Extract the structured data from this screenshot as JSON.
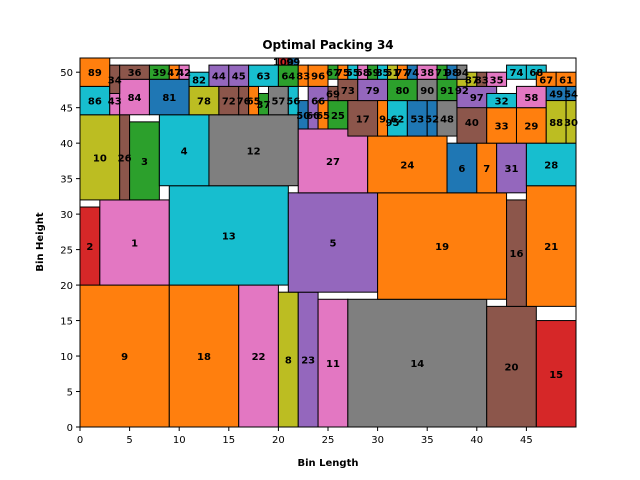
{
  "chart_data": {
    "type": "packing",
    "title": "Optimal Packing 34",
    "xlabel": "Bin Length",
    "ylabel": "Bin Height",
    "xlim": [
      0,
      50
    ],
    "ylim": [
      0,
      52
    ],
    "xticks": [
      0,
      5,
      10,
      15,
      20,
      25,
      30,
      35,
      40,
      45
    ],
    "yticks": [
      0,
      5,
      10,
      15,
      20,
      25,
      30,
      35,
      40,
      45,
      50
    ],
    "colors": [
      "#1f77b4",
      "#ff7f0e",
      "#2ca02c",
      "#d62728",
      "#9467bd",
      "#8c564b",
      "#e377c2",
      "#7f7f7f",
      "#bcbd22",
      "#17becf"
    ],
    "rects": [
      {
        "id": "9",
        "x": 0,
        "y": 0,
        "w": 9,
        "h": 20,
        "c": 1
      },
      {
        "id": "18",
        "x": 9,
        "y": 0,
        "w": 7,
        "h": 20,
        "c": 1
      },
      {
        "id": "22",
        "x": 16,
        "y": 0,
        "w": 4,
        "h": 20,
        "c": 6
      },
      {
        "id": "8",
        "x": 20,
        "y": 0,
        "w": 2,
        "h": 19,
        "c": 8
      },
      {
        "id": "23",
        "x": 22,
        "y": 0,
        "w": 2,
        "h": 19,
        "c": 4
      },
      {
        "id": "11",
        "x": 24,
        "y": 0,
        "w": 3,
        "h": 18,
        "c": 6
      },
      {
        "id": "14",
        "x": 27,
        "y": 0,
        "w": 14,
        "h": 18,
        "c": 7
      },
      {
        "id": "20",
        "x": 41,
        "y": 0,
        "w": 5,
        "h": 17,
        "c": 5
      },
      {
        "id": "15",
        "x": 46,
        "y": 0,
        "w": 4,
        "h": 15,
        "c": 3
      },
      {
        "id": "2",
        "x": 0,
        "y": 20,
        "w": 2,
        "h": 11,
        "c": 3
      },
      {
        "id": "1",
        "x": 2,
        "y": 20,
        "w": 7,
        "h": 12,
        "c": 6
      },
      {
        "id": "13",
        "x": 9,
        "y": 20,
        "w": 12,
        "h": 14,
        "c": 9
      },
      {
        "id": "5",
        "x": 21,
        "y": 19,
        "w": 9,
        "h": 14,
        "c": 4
      },
      {
        "id": "19",
        "x": 30,
        "y": 18,
        "w": 13,
        "h": 15,
        "c": 1
      },
      {
        "id": "16",
        "x": 43,
        "y": 17,
        "w": 2,
        "h": 15,
        "c": 5
      },
      {
        "id": "21",
        "x": 45,
        "y": 17,
        "w": 5,
        "h": 17,
        "c": 1
      },
      {
        "id": "10",
        "x": 0,
        "y": 32,
        "w": 4,
        "h": 12,
        "c": 8
      },
      {
        "id": "26",
        "x": 4,
        "y": 32,
        "w": 1,
        "h": 12,
        "c": 5
      },
      {
        "id": "3",
        "x": 5,
        "y": 32,
        "w": 3,
        "h": 11,
        "c": 2
      },
      {
        "id": "4",
        "x": 8,
        "y": 34,
        "w": 5,
        "h": 10,
        "c": 9
      },
      {
        "id": "12",
        "x": 13,
        "y": 34,
        "w": 9,
        "h": 10,
        "c": 7
      },
      {
        "id": "27",
        "x": 22,
        "y": 33,
        "w": 7,
        "h": 9,
        "c": 6
      },
      {
        "id": "24",
        "x": 29,
        "y": 33,
        "w": 8,
        "h": 8,
        "c": 1
      },
      {
        "id": "6",
        "x": 37,
        "y": 33,
        "w": 3,
        "h": 7,
        "c": 0
      },
      {
        "id": "7",
        "x": 40,
        "y": 33,
        "w": 2,
        "h": 7,
        "c": 1
      },
      {
        "id": "31",
        "x": 42,
        "y": 33,
        "w": 3,
        "h": 7,
        "c": 4
      },
      {
        "id": "28",
        "x": 45,
        "y": 34,
        "w": 5,
        "h": 6,
        "c": 9
      },
      {
        "id": "86",
        "x": 0,
        "y": 44,
        "w": 3,
        "h": 4,
        "c": 9
      },
      {
        "id": "43",
        "x": 3,
        "y": 44,
        "w": 1,
        "h": 4,
        "c": 6
      },
      {
        "id": "84",
        "x": 4,
        "y": 44,
        "w": 3,
        "h": 5,
        "c": 6
      },
      {
        "id": "81",
        "x": 7,
        "y": 44,
        "w": 4,
        "h": 5,
        "c": 0
      },
      {
        "id": "78",
        "x": 11,
        "y": 44,
        "w": 3,
        "h": 4,
        "c": 8
      },
      {
        "id": "72",
        "x": 14,
        "y": 44,
        "w": 2,
        "h": 4,
        "c": 5
      },
      {
        "id": "76",
        "x": 16,
        "y": 44,
        "w": 1,
        "h": 4,
        "c": 5
      },
      {
        "id": "65",
        "x": 17,
        "y": 44,
        "w": 1,
        "h": 4,
        "c": 1
      },
      {
        "id": "37",
        "x": 18,
        "y": 44,
        "w": 1,
        "h": 3,
        "c": 2
      },
      {
        "id": "57",
        "x": 19,
        "y": 44,
        "w": 2,
        "h": 4,
        "c": 7
      },
      {
        "id": "56",
        "x": 21,
        "y": 44,
        "w": 1,
        "h": 4,
        "c": 9
      },
      {
        "id": "50",
        "x": 22,
        "y": 42,
        "w": 1,
        "h": 4,
        "c": 0
      },
      {
        "id": "60",
        "x": 23,
        "y": 42,
        "w": 1,
        "h": 4,
        "c": 4
      },
      {
        "id": "66",
        "x": 23,
        "y": 44,
        "w": 2,
        "h": 4,
        "c": 4
      },
      {
        "id": "65",
        "x": 24,
        "y": 42,
        "w": 1,
        "h": 4,
        "c": 1
      },
      {
        "id": "25",
        "x": 25,
        "y": 42,
        "w": 2,
        "h": 4,
        "c": 2
      },
      {
        "id": "69",
        "x": 25,
        "y": 46,
        "w": 1,
        "h": 2,
        "c": 5
      },
      {
        "id": "73",
        "x": 26,
        "y": 46,
        "w": 2,
        "h": 3,
        "c": 5
      },
      {
        "id": "17",
        "x": 27,
        "y": 41,
        "w": 3,
        "h": 5,
        "c": 5
      },
      {
        "id": "79",
        "x": 28,
        "y": 46,
        "w": 3,
        "h": 3,
        "c": 4
      },
      {
        "id": "9",
        "x": 30,
        "y": 41,
        "w": 1,
        "h": 5,
        "c": 1
      },
      {
        "id": "95",
        "x": 31,
        "y": 41,
        "w": 1,
        "h": 4,
        "c": 3
      },
      {
        "id": "62",
        "x": 31,
        "y": 41,
        "w": 2,
        "h": 5,
        "c": 9
      },
      {
        "id": "53",
        "x": 33,
        "y": 41,
        "w": 2,
        "h": 5,
        "c": 0
      },
      {
        "id": "52",
        "x": 35,
        "y": 41,
        "w": 1,
        "h": 5,
        "c": 0
      },
      {
        "id": "48",
        "x": 36,
        "y": 41,
        "w": 2,
        "h": 5,
        "c": 7
      },
      {
        "id": "80",
        "x": 31,
        "y": 46,
        "w": 3,
        "h": 3,
        "c": 2
      },
      {
        "id": "90",
        "x": 34,
        "y": 46,
        "w": 2,
        "h": 3,
        "c": 7
      },
      {
        "id": "91",
        "x": 36,
        "y": 46,
        "w": 2,
        "h": 3,
        "c": 2
      },
      {
        "id": "92",
        "x": 38,
        "y": 46,
        "w": 1,
        "h": 3,
        "c": 8
      },
      {
        "id": "40",
        "x": 38,
        "y": 40,
        "w": 3,
        "h": 6,
        "c": 5
      },
      {
        "id": "97",
        "x": 38,
        "y": 45,
        "w": 4,
        "h": 3,
        "c": 4
      },
      {
        "id": "33",
        "x": 41,
        "y": 40,
        "w": 3,
        "h": 5,
        "c": 1
      },
      {
        "id": "32",
        "x": 41,
        "y": 45,
        "w": 3,
        "h": 2,
        "c": 9
      },
      {
        "id": "29",
        "x": 44,
        "y": 40,
        "w": 3,
        "h": 5,
        "c": 1
      },
      {
        "id": "58",
        "x": 44,
        "y": 45,
        "w": 3,
        "h": 3,
        "c": 6
      },
      {
        "id": "49",
        "x": 47,
        "y": 46,
        "w": 2,
        "h": 2,
        "c": 0
      },
      {
        "id": "54",
        "x": 49,
        "y": 46,
        "w": 1,
        "h": 2,
        "c": 0
      },
      {
        "id": "88",
        "x": 47,
        "y": 40,
        "w": 2,
        "h": 6,
        "c": 8
      },
      {
        "id": "30",
        "x": 49,
        "y": 40,
        "w": 1,
        "h": 6,
        "c": 8
      },
      {
        "id": "89",
        "x": 0,
        "y": 48,
        "w": 3,
        "h": 4,
        "c": 1
      },
      {
        "id": "34",
        "x": 3,
        "y": 47,
        "w": 1,
        "h": 4,
        "c": 5
      },
      {
        "id": "36",
        "x": 4,
        "y": 49,
        "w": 3,
        "h": 2,
        "c": 5
      },
      {
        "id": "39",
        "x": 7,
        "y": 49,
        "w": 2,
        "h": 2,
        "c": 2
      },
      {
        "id": "47",
        "x": 9,
        "y": 49,
        "w": 1,
        "h": 2,
        "c": 1
      },
      {
        "id": "42",
        "x": 10,
        "y": 49,
        "w": 1,
        "h": 2,
        "c": 6
      },
      {
        "id": "82",
        "x": 11,
        "y": 48,
        "w": 2,
        "h": 2,
        "c": 9
      },
      {
        "id": "44",
        "x": 13,
        "y": 48,
        "w": 2,
        "h": 3,
        "c": 4
      },
      {
        "id": "45",
        "x": 15,
        "y": 48,
        "w": 2,
        "h": 3,
        "c": 4
      },
      {
        "id": "63",
        "x": 17,
        "y": 48,
        "w": 3,
        "h": 3,
        "c": 9
      },
      {
        "id": "64",
        "x": 20,
        "y": 48,
        "w": 2,
        "h": 3,
        "c": 2
      },
      {
        "id": "83",
        "x": 22,
        "y": 48,
        "w": 1,
        "h": 3,
        "c": 1
      },
      {
        "id": "96",
        "x": 23,
        "y": 48,
        "w": 2,
        "h": 3,
        "c": 1
      },
      {
        "id": "100",
        "x": 20,
        "y": 51,
        "w": 1,
        "h": 1,
        "c": 3
      },
      {
        "id": "99",
        "x": 21,
        "y": 51,
        "w": 1,
        "h": 1,
        "c": 0
      },
      {
        "id": "67",
        "x": 25,
        "y": 49,
        "w": 1,
        "h": 2,
        "c": 2
      },
      {
        "id": "75",
        "x": 26,
        "y": 49,
        "w": 1,
        "h": 2,
        "c": 1
      },
      {
        "id": "55",
        "x": 27,
        "y": 49,
        "w": 1,
        "h": 2,
        "c": 9
      },
      {
        "id": "68",
        "x": 28,
        "y": 49,
        "w": 1,
        "h": 2,
        "c": 6
      },
      {
        "id": "59",
        "x": 29,
        "y": 49,
        "w": 1,
        "h": 2,
        "c": 2
      },
      {
        "id": "85",
        "x": 30,
        "y": 49,
        "w": 1,
        "h": 2,
        "c": 9
      },
      {
        "id": "51",
        "x": 31,
        "y": 49,
        "w": 1,
        "h": 2,
        "c": 8
      },
      {
        "id": "77",
        "x": 32,
        "y": 49,
        "w": 1,
        "h": 2,
        "c": 1
      },
      {
        "id": "74",
        "x": 33,
        "y": 49,
        "w": 1,
        "h": 2,
        "c": 0
      },
      {
        "id": "38",
        "x": 34,
        "y": 49,
        "w": 2,
        "h": 2,
        "c": 6
      },
      {
        "id": "71",
        "x": 36,
        "y": 49,
        "w": 1,
        "h": 2,
        "c": 2
      },
      {
        "id": "98",
        "x": 37,
        "y": 49,
        "w": 1,
        "h": 2,
        "c": 0
      },
      {
        "id": "94",
        "x": 38,
        "y": 49,
        "w": 1,
        "h": 2,
        "c": 7
      },
      {
        "id": "87",
        "x": 39,
        "y": 48,
        "w": 1,
        "h": 2,
        "c": 8
      },
      {
        "id": "83",
        "x": 40,
        "y": 48,
        "w": 1,
        "h": 2,
        "c": 5
      },
      {
        "id": "35",
        "x": 41,
        "y": 48,
        "w": 2,
        "h": 2,
        "c": 6
      },
      {
        "id": "74",
        "x": 43,
        "y": 49,
        "w": 2,
        "h": 2,
        "c": 9
      },
      {
        "id": "68",
        "x": 45,
        "y": 49,
        "w": 2,
        "h": 2,
        "c": 9
      },
      {
        "id": "67",
        "x": 46,
        "y": 48,
        "w": 2,
        "h": 2,
        "c": 1
      },
      {
        "id": "61",
        "x": 48,
        "y": 48,
        "w": 2,
        "h": 2,
        "c": 1
      }
    ]
  }
}
